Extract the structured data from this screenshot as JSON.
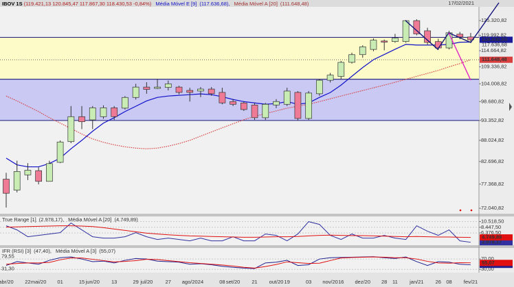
{
  "date": "17/02/2021",
  "chart_data": [
    {
      "type": "candlestick",
      "title": "IBOV 1S",
      "quote": "(119.421,13  120.845,47  117.867,30  118.430,53  -0,84%)",
      "categories": [
        "abr/20",
        null,
        "22",
        "mai/20",
        null,
        "01",
        null,
        "15",
        "jun/20",
        null,
        "13",
        null,
        "29",
        "jul/20",
        null,
        "27",
        null,
        "ago/20",
        "24",
        null,
        "08",
        "set/20",
        null,
        "21",
        null,
        "out/20",
        "19",
        null,
        "03",
        null,
        "nov/20",
        "16",
        null,
        "dez/20",
        null,
        "28",
        "11",
        null,
        "jan/21",
        null,
        "26",
        "08",
        null,
        "fev/21"
      ],
      "open": [
        78500,
        76000,
        79500,
        80500,
        78000,
        82500,
        87700,
        94400,
        93500,
        94400,
        96900,
        96800,
        99900,
        103000,
        102600,
        102900,
        103000,
        102000,
        101800,
        102400,
        101400,
        98700,
        98300,
        97700,
        94100,
        97700,
        97900,
        101400,
        93900,
        101000,
        105100,
        106300,
        110800,
        113350,
        115100,
        118000,
        117800,
        117800,
        125300,
        121600,
        117800,
        115600,
        120400,
        119421.13
      ],
      "high": [
        80000,
        82900,
        82300,
        81300,
        82900,
        88000,
        97400,
        97400,
        97400,
        97600,
        97400,
        100300,
        104000,
        104500,
        105500,
        105000,
        103400,
        102800,
        103000,
        103000,
        102800,
        99400,
        98700,
        98300,
        98300,
        99400,
        102800,
        101800,
        101800,
        105500,
        107400,
        111250,
        114000,
        116500,
        118900,
        118500,
        120500,
        125500,
        125800,
        122700,
        118800,
        121600,
        121200,
        120845.47
      ],
      "low": [
        72200,
        75500,
        78300,
        77300,
        78000,
        82300,
        87300,
        91000,
        91000,
        93800,
        93500,
        96400,
        99300,
        101000,
        102400,
        102000,
        100800,
        98700,
        100000,
        100400,
        97900,
        97400,
        96000,
        93500,
        93500,
        96800,
        97400,
        93350,
        93500,
        100400,
        104400,
        105500,
        110400,
        112300,
        114500,
        114800,
        117400,
        117400,
        120000,
        116800,
        114900,
        115100,
        118600,
        117867.3
      ],
      "close": [
        75300,
        80300,
        80600,
        78000,
        82200,
        87600,
        94400,
        93000,
        96900,
        96900,
        94400,
        99900,
        103000,
        102300,
        103000,
        104000,
        101400,
        101400,
        102400,
        101000,
        98300,
        97900,
        96400,
        94100,
        97900,
        98700,
        101800,
        93900,
        101200,
        105100,
        106700,
        110800,
        113350,
        116000,
        118300,
        117600,
        119000,
        125300,
        120500,
        117500,
        115600,
        120900,
        119400,
        118430.53
      ],
      "up_color": "#c8ecb4",
      "down_color": "#ee7a96",
      "close_label": "118.430,53",
      "series": [
        {
          "name": "Média Móvel E [9]",
          "legend_label": "(117.636,68),",
          "price_label": "117.636,68",
          "color": "#1010c8",
          "style": "solid",
          "values": [
            83527,
            81892,
            81409,
            81409,
            82214,
            83527,
            85867,
            88025,
            90417,
            92617,
            94113,
            95823,
            97343,
            98886,
            99911,
            100321,
            100526,
            100731,
            100936,
            100731,
            100116,
            99296,
            98681,
            98301,
            97921,
            98111,
            98681,
            97921,
            98301,
            99911,
            101344,
            103599,
            106329,
            109105,
            111680,
            113386,
            115149,
            116843,
            116601,
            116601,
            116601,
            116843,
            117573,
            117636.68
          ]
        },
        {
          "name": "Média Móvel A [20]",
          "legend_label": "(111.648,48)",
          "price_label": "111.648,48",
          "color": "#d84040",
          "style": "dotted",
          "values": [
            100321,
            98886,
            97343,
            95823,
            94113,
            92617,
            91153,
            89681,
            88393,
            87527,
            86863,
            86365,
            86033,
            85867,
            86033,
            86531,
            87195,
            88025,
            89129,
            90233,
            91337,
            92433,
            93543,
            94493,
            95253,
            96013,
            96783,
            97343,
            97921,
            98681,
            99501,
            100321,
            101139,
            101959,
            102779,
            103599,
            104473,
            105401,
            106329,
            107257,
            108185,
            109337,
            110402,
            111648.48
          ]
        }
      ],
      "zones": [
        {
          "from": 105400,
          "to": 119270,
          "color": "#fdfbc8"
        },
        {
          "from": 93350,
          "to": 105400,
          "color": "#c9c9f4"
        }
      ],
      "ylim": [
        70900,
        130500
      ],
      "log_scale": true,
      "yticks": [
        {
          "value": 125320.82,
          "label": "125.320,82"
        },
        {
          "value": 119992.82,
          "label": "119.992,82"
        },
        {
          "value": 114664.82,
          "label": "114.664,82"
        },
        {
          "value": 109336.82,
          "label": "109.336,82"
        },
        {
          "value": 104008.82,
          "label": "104.008,82"
        },
        {
          "value": 98680.82,
          "label": "98.680,82"
        },
        {
          "value": 93352.82,
          "label": "93.352,82"
        },
        {
          "value": 88024.82,
          "label": "88.024,82"
        },
        {
          "value": 82696.82,
          "label": "82.696,82"
        },
        {
          "value": 77368.82,
          "label": "77.368,82"
        },
        {
          "value": 72040.82,
          "label": "72.040,82"
        }
      ]
    },
    {
      "type": "line",
      "series": [
        {
          "name": "True Range [1]",
          "legend_label": "(2.978,17),",
          "price_label": "2.978,17",
          "color": "#3030a0",
          "values": [
            9000,
            7500,
            5000,
            5500,
            6000,
            6500,
            10000,
            7500,
            5000,
            4500,
            4500,
            5000,
            6500,
            5000,
            4000,
            4500,
            4000,
            3500,
            4500,
            3500,
            3500,
            5000,
            3500,
            3500,
            6000,
            5500,
            3500,
            6000,
            10500,
            9500,
            5500,
            4000,
            6000,
            4500,
            4500,
            5500,
            4500,
            4000,
            9000,
            7000,
            5500,
            7500,
            3500,
            2978.17
          ]
        },
        {
          "name": "Média Móvel A [20]",
          "legend_label": "(4.749,89)",
          "price_label": "4.749,89",
          "color": "#e01010",
          "values": [
            8500,
            8600,
            8700,
            8800,
            8900,
            9000,
            9000,
            8900,
            8700,
            8300,
            7800,
            7300,
            6800,
            6300,
            6000,
            5700,
            5500,
            5300,
            5200,
            5100,
            5000,
            4900,
            4800,
            4800,
            4900,
            5000,
            5000,
            5100,
            5300,
            5500,
            5600,
            5500,
            5400,
            5400,
            5300,
            5200,
            5100,
            5000,
            5100,
            5000,
            4900,
            4900,
            4800,
            4749.89
          ]
        }
      ],
      "ylim": [
        1900,
        12400
      ],
      "yticks": [
        {
          "value": 10518.5,
          "label": "10.518,50"
        },
        {
          "value": 8447.5,
          "label": "8.447,50"
        },
        {
          "value": 6376.5,
          "label": "6.376,50"
        }
      ]
    },
    {
      "type": "line",
      "series": [
        {
          "name": "IFR (RSI) [3]",
          "legend_label": "(47,40),",
          "price_label": "47,40",
          "color": "#202090",
          "values": [
            45,
            60,
            55,
            50,
            65,
            75,
            78,
            70,
            60,
            62,
            55,
            65,
            72,
            70,
            62,
            60,
            58,
            50,
            52,
            48,
            42,
            38,
            35,
            33,
            55,
            58,
            65,
            45,
            48,
            70,
            75,
            76,
            77,
            78,
            79,
            75,
            72,
            78,
            60,
            45,
            60,
            58,
            50,
            47.4
          ]
        },
        {
          "name": "Média Móvel A [3]",
          "legend_label": "(55,07)",
          "price_label": "55,07",
          "color": "#e01010",
          "values": [
            50,
            53,
            55,
            55,
            57,
            67,
            74,
            74,
            69,
            64,
            59,
            61,
            64,
            69,
            68,
            64,
            60,
            56,
            53,
            50,
            47,
            43,
            38,
            35,
            41,
            49,
            59,
            56,
            53,
            54,
            64,
            74,
            76,
            77,
            78,
            77,
            75,
            75,
            70,
            61,
            55,
            54,
            56,
            55.07
          ]
        }
      ],
      "ylim": [
        20,
        113
      ],
      "yticks": [
        {
          "value": 70,
          "label": "70,00"
        },
        {
          "value": 30,
          "label": "30,00"
        }
      ],
      "range_labels": [
        {
          "value": 79.55,
          "label": "79,55"
        },
        {
          "value": 31.3,
          "label": "31,30"
        }
      ]
    }
  ]
}
